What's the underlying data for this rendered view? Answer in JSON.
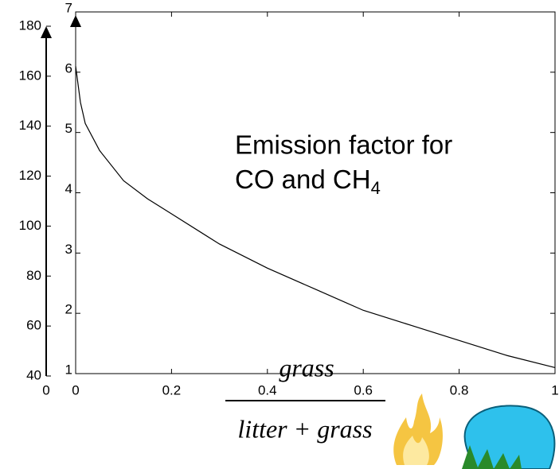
{
  "chart_data": {
    "type": "line",
    "annotation": [
      "Emission factor for",
      "CO and CH",
      "4"
    ],
    "x_label": {
      "numerator": "grass",
      "denominator": "litter + grass"
    },
    "x": [
      0,
      0.01,
      0.02,
      0.05,
      0.1,
      0.15,
      0.2,
      0.3,
      0.4,
      0.5,
      0.6,
      0.7,
      0.8,
      0.9,
      1
    ],
    "series": [
      {
        "color": "#000000",
        "values": [
          6.1,
          5.5,
          5.15,
          4.7,
          4.2,
          3.9,
          3.65,
          3.15,
          2.75,
          2.4,
          2.05,
          1.8,
          1.55,
          1.3,
          1.1
        ]
      }
    ],
    "xlim": [
      0,
      1
    ],
    "xticks": [
      0,
      0.2,
      0.4,
      0.6,
      0.8,
      1
    ],
    "ylim": [
      1,
      7
    ],
    "yticks": [
      1,
      2,
      3,
      4,
      5,
      6,
      7
    ],
    "y2lim": [
      40,
      180
    ],
    "y2ticks": [
      40,
      60,
      80,
      100,
      120,
      140,
      160,
      180
    ],
    "x2ticks": [
      0
    ]
  }
}
